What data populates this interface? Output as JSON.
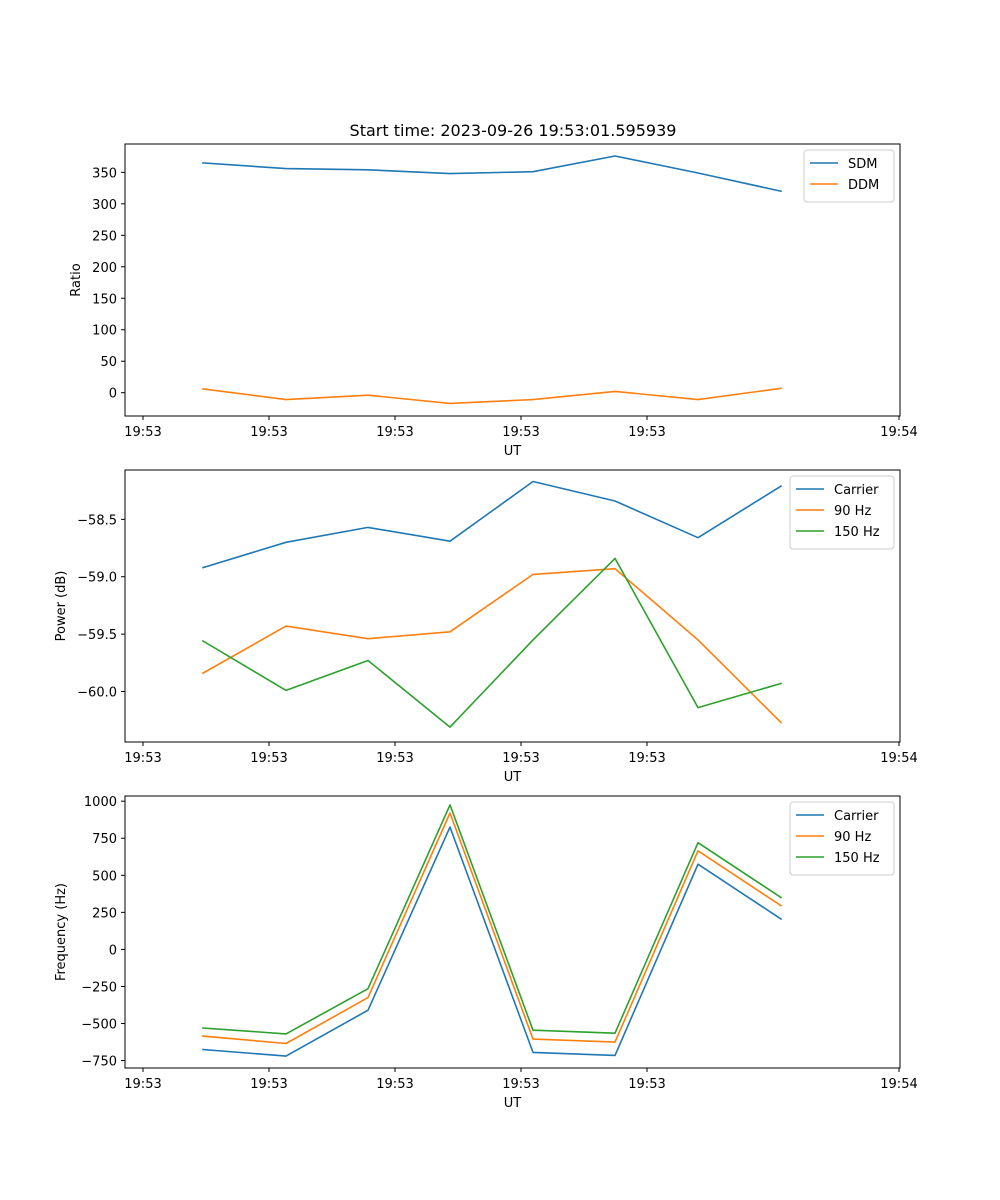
{
  "figure_title": "Start time: 2023-09-26 19:53:01.595939",
  "colors": {
    "blue": "#1f77b4",
    "orange": "#ff7f0e",
    "green": "#2ca02c",
    "axis": "#000000",
    "legend_border": "#cccccc"
  },
  "chart_data": [
    {
      "type": "line",
      "title": "Start time: 2023-09-26 19:53:01.595939",
      "xlabel": "UT",
      "ylabel": "Ratio",
      "x_tick_labels": [
        "19:53",
        "19:53",
        "19:53",
        "19:53",
        "19:53",
        "19:54"
      ],
      "y_ticks": [
        0,
        50,
        100,
        150,
        200,
        250,
        300,
        350
      ],
      "y_tick_labels": [
        "0",
        "50",
        "100",
        "150",
        "200",
        "250",
        "300",
        "350"
      ],
      "ylim": [
        -37,
        395
      ],
      "legend_position": "top-right",
      "series": [
        {
          "name": "SDM",
          "color": "#1f77b4",
          "values": [
            365,
            356,
            354,
            348,
            351,
            376,
            349,
            320
          ]
        },
        {
          "name": "DDM",
          "color": "#ff7f0e",
          "values": [
            6,
            -11,
            -4,
            -17,
            -11,
            2,
            -11,
            7
          ]
        }
      ]
    },
    {
      "type": "line",
      "title": "",
      "xlabel": "UT",
      "ylabel": "Power (dB)",
      "x_tick_labels": [
        "19:53",
        "19:53",
        "19:53",
        "19:53",
        "19:53",
        "19:54"
      ],
      "y_ticks": [
        -60.0,
        -59.5,
        -59.0,
        -58.5
      ],
      "y_tick_labels": [
        "−60.0",
        "−59.5",
        "−59.0",
        "−58.5"
      ],
      "ylim": [
        -60.44,
        -58.07
      ],
      "legend_position": "top-right",
      "series": [
        {
          "name": "Carrier",
          "color": "#1f77b4",
          "values": [
            -58.92,
            -58.7,
            -58.57,
            -58.69,
            -58.17,
            -58.34,
            -58.66,
            -58.21
          ]
        },
        {
          "name": "90 Hz",
          "color": "#ff7f0e",
          "values": [
            -59.84,
            -59.43,
            -59.54,
            -59.48,
            -58.98,
            -58.93,
            -59.55,
            -60.27
          ]
        },
        {
          "name": "150 Hz",
          "color": "#2ca02c",
          "values": [
            -59.56,
            -59.99,
            -59.73,
            -60.31,
            -59.55,
            -58.84,
            -60.14,
            -59.93
          ]
        }
      ]
    },
    {
      "type": "line",
      "title": "",
      "xlabel": "UT",
      "ylabel": "Frequency (Hz)",
      "x_tick_labels": [
        "19:53",
        "19:53",
        "19:53",
        "19:53",
        "19:53",
        "19:54"
      ],
      "y_ticks": [
        -750,
        -500,
        -250,
        0,
        250,
        500,
        750,
        1000
      ],
      "y_tick_labels": [
        "−750",
        "−500",
        "−250",
        "0",
        "250",
        "500",
        "750",
        "1000"
      ],
      "ylim": [
        -800,
        1035
      ],
      "legend_position": "top-right",
      "series": [
        {
          "name": "Carrier",
          "color": "#1f77b4",
          "values": [
            -675,
            -720,
            -410,
            825,
            -695,
            -715,
            575,
            205
          ]
        },
        {
          "name": "90 Hz",
          "color": "#ff7f0e",
          "values": [
            -585,
            -635,
            -325,
            920,
            -605,
            -625,
            665,
            295
          ]
        },
        {
          "name": "150 Hz",
          "color": "#2ca02c",
          "values": [
            -530,
            -570,
            -265,
            975,
            -545,
            -565,
            720,
            350
          ]
        }
      ]
    }
  ]
}
